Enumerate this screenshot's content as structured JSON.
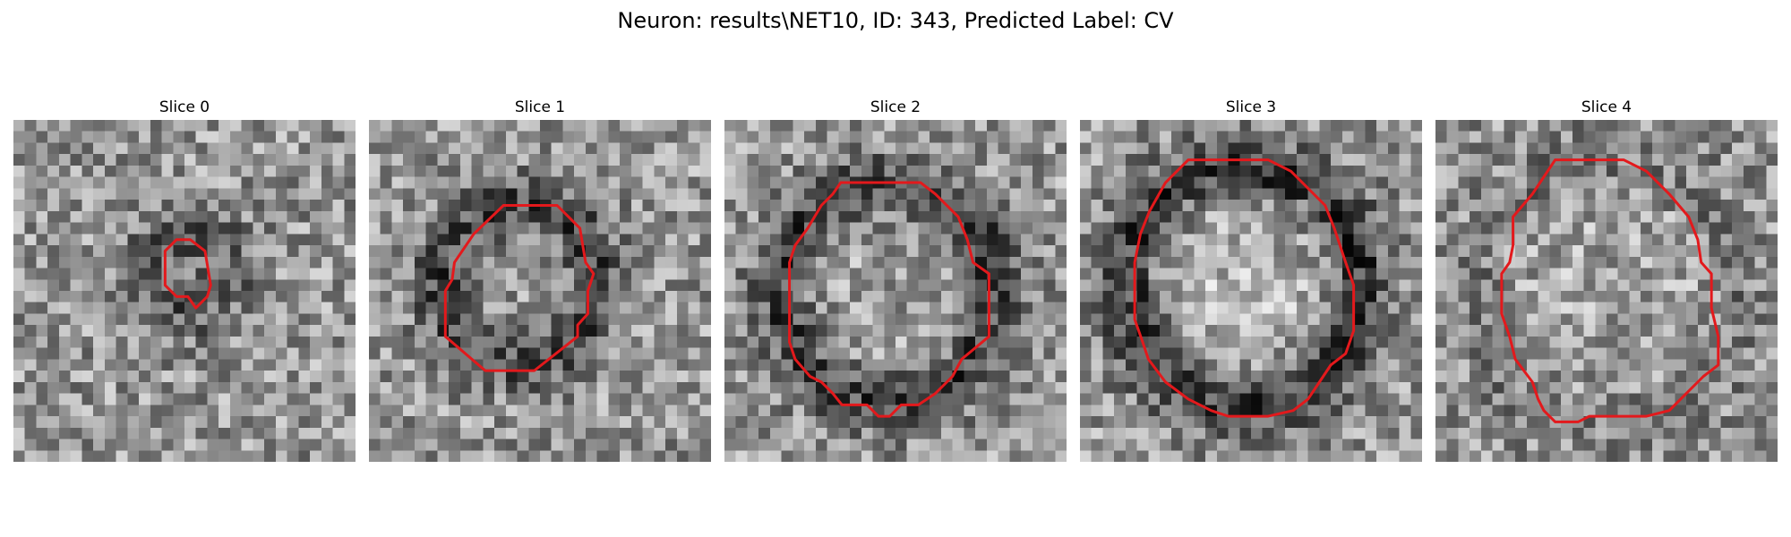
{
  "figure": {
    "suptitle": "Neuron: results\\NET10, ID: 343, Predicted Label: CV",
    "contour_color": "#e3191c",
    "colormap": "grayscale"
  },
  "slices": [
    {
      "label": "Slice 0",
      "contour": [
        [
          14.3,
          10.5
        ],
        [
          13.3,
          11.5
        ],
        [
          13.3,
          14.5
        ],
        [
          14.3,
          15.5
        ],
        [
          15.3,
          15.5
        ],
        [
          16,
          16.5
        ],
        [
          17,
          15.5
        ],
        [
          17.3,
          14.5
        ],
        [
          16.8,
          11.5
        ],
        [
          15.5,
          10.5
        ]
      ]
    },
    {
      "label": "Slice 1",
      "contour": [
        [
          11.8,
          7.5
        ],
        [
          16.5,
          7.5
        ],
        [
          18.5,
          9.5
        ],
        [
          19,
          12.5
        ],
        [
          19.7,
          13.5
        ],
        [
          19.2,
          15
        ],
        [
          19.2,
          17
        ],
        [
          18.3,
          18
        ],
        [
          18.3,
          19
        ],
        [
          14.5,
          22
        ],
        [
          10.2,
          22
        ],
        [
          6.7,
          19
        ],
        [
          6.7,
          15
        ],
        [
          7.3,
          14
        ],
        [
          7.5,
          12.5
        ],
        [
          9.2,
          10
        ]
      ]
    },
    {
      "label": "Slice 2",
      "contour": [
        [
          10.2,
          5.5
        ],
        [
          17.2,
          5.5
        ],
        [
          18.5,
          6.5
        ],
        [
          20.5,
          8.5
        ],
        [
          21.3,
          10.5
        ],
        [
          21.8,
          12.5
        ],
        [
          23.2,
          13.5
        ],
        [
          23.2,
          19
        ],
        [
          20.8,
          21
        ],
        [
          20,
          22.5
        ],
        [
          18.5,
          24
        ],
        [
          17,
          25
        ],
        [
          15.5,
          25
        ],
        [
          14.5,
          26
        ],
        [
          13.5,
          26
        ],
        [
          12.5,
          25
        ],
        [
          10.3,
          25
        ],
        [
          9.5,
          24
        ],
        [
          8.5,
          23
        ],
        [
          7.5,
          22.5
        ],
        [
          6.2,
          21
        ],
        [
          5.7,
          19.5
        ],
        [
          5.7,
          12.5
        ],
        [
          6.2,
          11
        ],
        [
          7.3,
          9.5
        ],
        [
          8.5,
          7.5
        ],
        [
          9.5,
          6.5
        ]
      ]
    },
    {
      "label": "Slice 3",
      "contour": [
        [
          9.5,
          3.5
        ],
        [
          16.5,
          3.5
        ],
        [
          18.5,
          4.5
        ],
        [
          21.5,
          7.5
        ],
        [
          22.3,
          9.5
        ],
        [
          23.3,
          12.5
        ],
        [
          24,
          14.5
        ],
        [
          24,
          18.5
        ],
        [
          23.3,
          20.5
        ],
        [
          22,
          21.5
        ],
        [
          21,
          23
        ],
        [
          20,
          24.5
        ],
        [
          18.7,
          25.5
        ],
        [
          16.5,
          26
        ],
        [
          13,
          26
        ],
        [
          11.5,
          25.5
        ],
        [
          9.5,
          24.5
        ],
        [
          7.5,
          23
        ],
        [
          6,
          21
        ],
        [
          5.5,
          19.5
        ],
        [
          4.8,
          17.5
        ],
        [
          4.8,
          12.5
        ],
        [
          5.3,
          10
        ],
        [
          6.1,
          8
        ],
        [
          7.5,
          5.5
        ]
      ]
    },
    {
      "label": "Slice 4",
      "contour": [
        [
          10.5,
          3.5
        ],
        [
          16.5,
          3.5
        ],
        [
          18.5,
          4.5
        ],
        [
          20.5,
          6.5
        ],
        [
          22.2,
          8.5
        ],
        [
          23,
          10.5
        ],
        [
          23.3,
          12.5
        ],
        [
          24.2,
          13.5
        ],
        [
          24.2,
          16.5
        ],
        [
          24.8,
          19
        ],
        [
          24.8,
          21.5
        ],
        [
          23.5,
          22.5
        ],
        [
          22,
          24
        ],
        [
          20.5,
          25.5
        ],
        [
          18.5,
          26
        ],
        [
          13.5,
          26
        ],
        [
          12.5,
          26.5
        ],
        [
          10.5,
          26.5
        ],
        [
          9.5,
          25.5
        ],
        [
          9,
          24.5
        ],
        [
          8.5,
          23
        ],
        [
          7,
          21
        ],
        [
          6.5,
          19
        ],
        [
          5.8,
          17
        ],
        [
          5.8,
          13.5
        ],
        [
          6.5,
          12.5
        ],
        [
          6.8,
          11
        ],
        [
          6.8,
          8.5
        ],
        [
          8.5,
          6.5
        ]
      ]
    }
  ]
}
